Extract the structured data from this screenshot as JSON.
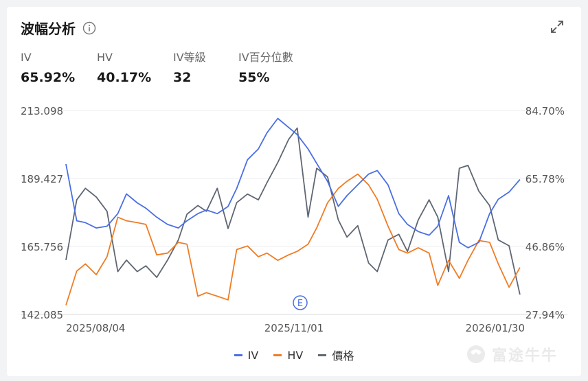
{
  "title": "波幅分析",
  "stats": [
    {
      "label": "IV",
      "value": "65.92%"
    },
    {
      "label": "HV",
      "value": "40.17%"
    },
    {
      "label": "IV等級",
      "value": "32"
    },
    {
      "label": "IV百分位數",
      "value": "55%"
    }
  ],
  "legend": [
    {
      "label": "IV",
      "color": "#4a6fe3"
    },
    {
      "label": "HV",
      "color": "#f07c24"
    },
    {
      "label": "價格",
      "color": "#5f6673"
    }
  ],
  "watermark": "富途牛牛",
  "chart_data": {
    "type": "line",
    "left_axis_ticks": [
      "213.098",
      "189.427",
      "165.756",
      "142.085"
    ],
    "right_axis_ticks": [
      "84.70%",
      "65.78%",
      "46.86%",
      "27.94%"
    ],
    "x_tick_labels": [
      "2025/08/04",
      "2025/11/01",
      "2026/01/30"
    ],
    "event_marker": "E",
    "y_left_range": [
      142.085,
      213.098
    ],
    "y_right_range": [
      27.94,
      84.7
    ],
    "x_range": [
      "2025/07/09",
      "2026/02/05"
    ],
    "series": [
      {
        "name": "IV",
        "axis": "right",
        "x": [
          "2025/07/09",
          "2025/07/14",
          "2025/07/18",
          "2025/07/23",
          "2025/07/28",
          "2025/08/02",
          "2025/08/06",
          "2025/08/11",
          "2025/08/15",
          "2025/08/20",
          "2025/08/25",
          "2025/08/30",
          "2025/09/03",
          "2025/09/08",
          "2025/09/12",
          "2025/09/17",
          "2025/09/22",
          "2025/09/26",
          "2025/10/01",
          "2025/10/06",
          "2025/10/10",
          "2025/10/15",
          "2025/10/20",
          "2025/10/24",
          "2025/10/29",
          "2025/11/02",
          "2025/11/07",
          "2025/11/12",
          "2025/11/16",
          "2025/11/21",
          "2025/11/26",
          "2025/11/30",
          "2025/12/05",
          "2025/12/10",
          "2025/12/14",
          "2025/12/19",
          "2025/12/24",
          "2025/12/28",
          "2026/01/02",
          "2026/01/07",
          "2026/01/11",
          "2026/01/16",
          "2026/01/21",
          "2026/01/25",
          "2026/01/30",
          "2026/02/04"
        ],
        "values": [
          69.8,
          54.0,
          53.5,
          52.0,
          52.5,
          56.0,
          61.5,
          59.0,
          57.5,
          55.0,
          53.0,
          52.0,
          54.0,
          56.0,
          57.0,
          56.0,
          58.0,
          63.0,
          71.0,
          74.0,
          78.5,
          82.5,
          80.0,
          78.0,
          74.0,
          70.0,
          65.0,
          58.0,
          61.0,
          64.0,
          67.0,
          68.0,
          64.0,
          56.0,
          53.0,
          51.0,
          50.0,
          52.5,
          61.0,
          48.0,
          46.5,
          48.0,
          56.0,
          60.0,
          62.0,
          65.5
        ]
      },
      {
        "name": "HV",
        "axis": "right",
        "x": [
          "2025/07/09",
          "2025/07/14",
          "2025/07/18",
          "2025/07/23",
          "2025/07/28",
          "2025/08/02",
          "2025/08/06",
          "2025/08/11",
          "2025/08/15",
          "2025/08/20",
          "2025/08/25",
          "2025/08/30",
          "2025/09/03",
          "2025/09/08",
          "2025/09/12",
          "2025/09/17",
          "2025/09/22",
          "2025/09/26",
          "2025/10/01",
          "2025/10/06",
          "2025/10/10",
          "2025/10/15",
          "2025/10/20",
          "2025/10/24",
          "2025/10/29",
          "2025/11/02",
          "2025/11/07",
          "2025/11/12",
          "2025/11/16",
          "2025/11/21",
          "2025/11/26",
          "2025/11/30",
          "2025/12/05",
          "2025/12/10",
          "2025/12/14",
          "2025/12/19",
          "2025/12/24",
          "2025/12/28",
          "2026/01/02",
          "2026/01/07",
          "2026/01/11",
          "2026/01/16",
          "2026/01/21",
          "2026/01/25",
          "2026/01/30",
          "2026/02/04"
        ],
        "values": [
          30.5,
          40.0,
          42.0,
          39.0,
          44.0,
          55.0,
          54.0,
          53.5,
          53.0,
          44.5,
          45.0,
          48.0,
          47.5,
          33.0,
          34.0,
          33.0,
          32.0,
          46.0,
          47.0,
          44.0,
          45.0,
          43.0,
          44.5,
          45.5,
          47.5,
          52.0,
          59.0,
          63.0,
          65.0,
          67.0,
          64.0,
          60.0,
          52.5,
          46.0,
          45.0,
          46.5,
          45.0,
          36.0,
          43.0,
          38.0,
          43.0,
          48.5,
          48.0,
          42.0,
          35.5,
          41.0
        ]
      },
      {
        "name": "價格",
        "axis": "left",
        "x": [
          "2025/07/09",
          "2025/07/14",
          "2025/07/18",
          "2025/07/23",
          "2025/07/28",
          "2025/08/02",
          "2025/08/06",
          "2025/08/11",
          "2025/08/15",
          "2025/08/20",
          "2025/08/25",
          "2025/08/30",
          "2025/09/03",
          "2025/09/08",
          "2025/09/12",
          "2025/09/17",
          "2025/09/22",
          "2025/09/26",
          "2025/10/01",
          "2025/10/06",
          "2025/10/10",
          "2025/10/15",
          "2025/10/20",
          "2025/10/24",
          "2025/10/29",
          "2025/11/02",
          "2025/11/07",
          "2025/11/12",
          "2025/11/16",
          "2025/11/21",
          "2025/11/26",
          "2025/11/30",
          "2025/12/05",
          "2025/12/10",
          "2025/12/14",
          "2025/12/19",
          "2025/12/24",
          "2025/12/28",
          "2026/01/02",
          "2026/01/07",
          "2026/01/11",
          "2026/01/16",
          "2026/01/21",
          "2026/01/25",
          "2026/01/30",
          "2026/02/04"
        ],
        "values": [
          161.0,
          182.0,
          186.0,
          183.0,
          178.0,
          157.0,
          161.0,
          157.0,
          159.0,
          155.0,
          161.0,
          168.0,
          177.0,
          180.0,
          178.0,
          186.0,
          172.0,
          181.0,
          184.0,
          182.0,
          188.0,
          195.0,
          203.0,
          207.0,
          176.0,
          193.0,
          190.0,
          175.0,
          169.0,
          173.0,
          160.0,
          157.0,
          168.0,
          170.0,
          164.0,
          175.0,
          182.0,
          176.0,
          157.0,
          193.0,
          194.0,
          185.0,
          180.0,
          168.0,
          166.0,
          149.0
        ]
      }
    ],
    "grid": true
  }
}
